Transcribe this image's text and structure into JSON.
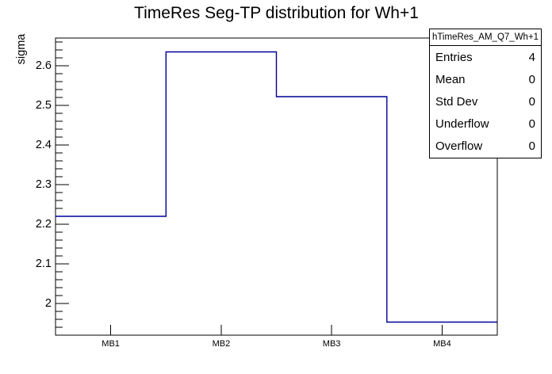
{
  "colors": {
    "background": "#ffffff",
    "axis": "#000000",
    "line": "#000099",
    "text": "#000000"
  },
  "stats_box": {
    "name": "hTimeRes_AM_Q7_Wh+1",
    "rows": [
      {
        "label": "Entries",
        "value": "4"
      },
      {
        "label": "Mean",
        "value": "0"
      },
      {
        "label": "Std Dev",
        "value": "0"
      },
      {
        "label": "Underflow",
        "value": "0"
      },
      {
        "label": "Overflow",
        "value": "0"
      }
    ]
  },
  "chart_data": {
    "type": "bar",
    "style": "root-step-histogram-outline",
    "title": "TimeRes Seg-TP distribution for Wh+1",
    "categories": [
      "MB1",
      "MB2",
      "MB3",
      "MB4"
    ],
    "values": [
      2.22,
      2.635,
      2.522,
      1.953
    ],
    "xlabel": "",
    "ylabel": "sigma",
    "ylim": [
      1.92,
      2.67
    ],
    "yticks": [
      {
        "value": 2.0,
        "label": "2"
      },
      {
        "value": 2.1,
        "label": "2.1"
      },
      {
        "value": 2.2,
        "label": "2.2"
      },
      {
        "value": 2.3,
        "label": "2.3"
      },
      {
        "value": 2.4,
        "label": "2.4"
      },
      {
        "value": 2.5,
        "label": "2.5"
      },
      {
        "value": 2.6,
        "label": "2.6"
      }
    ],
    "minor_tick_step": 0.02,
    "grid": false,
    "legend": null
  }
}
